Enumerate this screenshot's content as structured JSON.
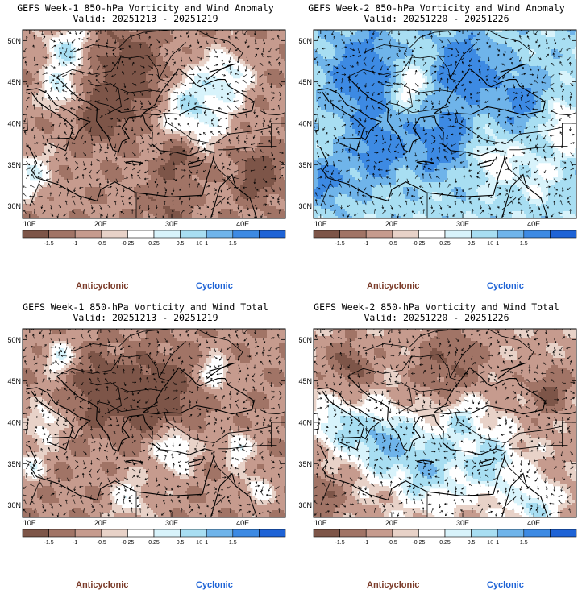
{
  "panels": [
    {
      "title": "GEFS Week-1 850-hPa Vorticity and Wind Anomaly",
      "valid": "Valid: 20251213 - 20251219",
      "pattern": "anomaly-week1"
    },
    {
      "title": "GEFS Week-2 850-hPa Vorticity and Wind Anomaly",
      "valid": "Valid: 20251220 - 20251226",
      "pattern": "anomaly-week2"
    },
    {
      "title": "GEFS Week-1 850-hPa Vorticity and Wind Total",
      "valid": "Valid: 20251213 - 20251219",
      "pattern": "total-week1"
    },
    {
      "title": "GEFS Week-2 850-hPa Vorticity and Wind Total",
      "valid": "Valid: 20251220 - 20251226",
      "pattern": "total-week2"
    }
  ],
  "lat_labels": [
    "50N",
    "45N",
    "40N",
    "35N",
    "30N"
  ],
  "lon_labels": [
    "10E",
    "20E",
    "30E",
    "40E"
  ],
  "colorbar": {
    "labels": [
      "-1.5",
      "-1",
      "-0.5",
      "-0.25",
      "0.25",
      "0.5",
      "1",
      "1.5"
    ],
    "unit_label": "10",
    "colors": [
      "#7d5548",
      "#a17466",
      "#c69b8e",
      "#e8d2c8",
      "#ffffff",
      "#d8f3fb",
      "#a8def2",
      "#6fb4ea",
      "#3d8ae3",
      "#1e63d6"
    ]
  },
  "legend": {
    "negative": "Anticyclonic",
    "positive": "Cyclonic"
  },
  "colors": {
    "brown": "#8f6454",
    "blue": "#3d8ae3",
    "light_blue": "#a8def2"
  }
}
